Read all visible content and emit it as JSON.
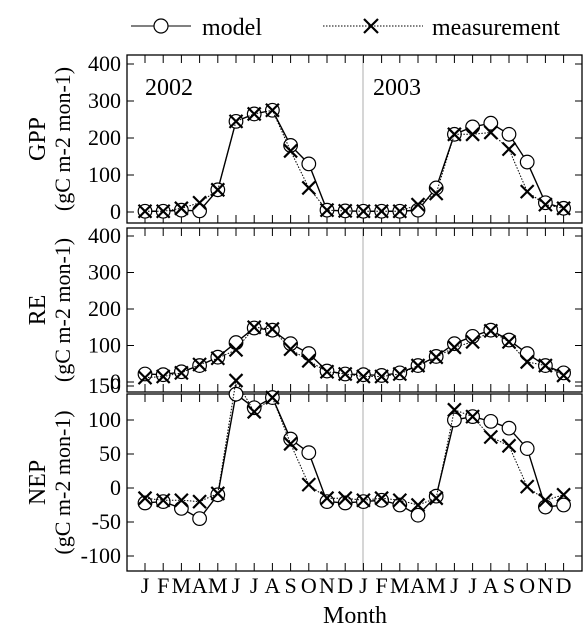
{
  "legend": {
    "model": "model",
    "measurement": "measurement"
  },
  "xlabel": "Month",
  "month_labels": [
    "J",
    "F",
    "M",
    "A",
    "M",
    "J",
    "J",
    "A",
    "S",
    "O",
    "N",
    "D",
    "J",
    "F",
    "M",
    "A",
    "M",
    "J",
    "J",
    "A",
    "S",
    "O",
    "N",
    "D"
  ],
  "year_labels": [
    "2002",
    "2003"
  ],
  "colors": {
    "model_marker_fill": "#ffffff",
    "line": "#000000",
    "year_divider": "#999999"
  },
  "chart_data": [
    {
      "type": "line",
      "panel": "GPP",
      "ylabel_main": "GPP",
      "ylabel_unit": "(gC m-2 mon-1)",
      "ylim": [
        0,
        400
      ],
      "yticks": [
        0,
        100,
        200,
        300,
        400
      ],
      "x": [
        1,
        2,
        3,
        4,
        5,
        6,
        7,
        8,
        9,
        10,
        11,
        12,
        13,
        14,
        15,
        16,
        17,
        18,
        19,
        20,
        21,
        22,
        23,
        24
      ],
      "series": [
        {
          "name": "model",
          "marker": "circle",
          "values": [
            2,
            2,
            5,
            3,
            60,
            245,
            265,
            275,
            180,
            130,
            5,
            3,
            2,
            2,
            2,
            5,
            65,
            210,
            230,
            240,
            210,
            135,
            25,
            10
          ]
        },
        {
          "name": "measurement",
          "marker": "cross",
          "values": [
            2,
            2,
            10,
            25,
            60,
            245,
            265,
            275,
            165,
            65,
            5,
            3,
            2,
            2,
            2,
            20,
            50,
            210,
            210,
            215,
            170,
            55,
            20,
            10
          ]
        }
      ]
    },
    {
      "type": "line",
      "panel": "RE",
      "ylabel_main": "RE",
      "ylabel_unit": "(gC m-2 mon-1)",
      "ylim": [
        0,
        400
      ],
      "yticks": [
        0,
        100,
        200,
        300,
        400
      ],
      "x": [
        1,
        2,
        3,
        4,
        5,
        6,
        7,
        8,
        9,
        10,
        11,
        12,
        13,
        14,
        15,
        16,
        17,
        18,
        19,
        20,
        21,
        22,
        23,
        24
      ],
      "series": [
        {
          "name": "model",
          "marker": "circle",
          "values": [
            22,
            20,
            28,
            45,
            68,
            108,
            148,
            142,
            105,
            78,
            30,
            22,
            20,
            18,
            25,
            45,
            70,
            105,
            125,
            142,
            115,
            78,
            45,
            25
          ]
        },
        {
          "name": "measurement",
          "marker": "cross",
          "values": [
            12,
            15,
            25,
            48,
            65,
            88,
            150,
            145,
            90,
            58,
            28,
            22,
            15,
            15,
            22,
            45,
            68,
            95,
            110,
            140,
            110,
            55,
            45,
            18
          ]
        }
      ]
    },
    {
      "type": "line",
      "panel": "NEP",
      "ylabel_main": "NEP",
      "ylabel_unit": "(gC m-2 mon-1)",
      "ylim": [
        -100,
        150
      ],
      "yticks": [
        -100,
        -50,
        0,
        50,
        100,
        150
      ],
      "x": [
        1,
        2,
        3,
        4,
        5,
        6,
        7,
        8,
        9,
        10,
        11,
        12,
        13,
        14,
        15,
        16,
        17,
        18,
        19,
        20,
        21,
        22,
        23,
        24
      ],
      "series": [
        {
          "name": "model",
          "marker": "circle",
          "values": [
            -22,
            -20,
            -30,
            -45,
            -10,
            138,
            118,
            133,
            72,
            52,
            -20,
            -22,
            -20,
            -18,
            -25,
            -40,
            -12,
            100,
            105,
            98,
            88,
            58,
            -28,
            -25
          ]
        },
        {
          "name": "measurement",
          "marker": "cross",
          "values": [
            -15,
            -18,
            -18,
            -20,
            -8,
            158,
            112,
            133,
            65,
            5,
            -15,
            -15,
            -18,
            -15,
            -18,
            -25,
            -15,
            115,
            105,
            75,
            62,
            2,
            -18,
            -10
          ]
        }
      ]
    }
  ]
}
